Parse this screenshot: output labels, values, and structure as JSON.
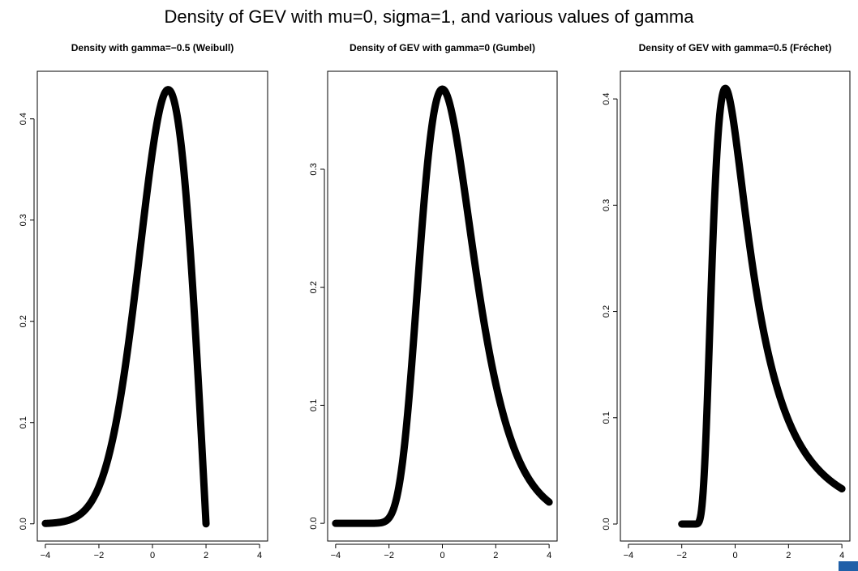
{
  "figure": {
    "title": "Density of GEV with mu=0, sigma=1, and various values of gamma"
  },
  "chart_data": [
    {
      "type": "line",
      "title": "Density with gamma=−0.5 (Weibull)",
      "xlabel": "",
      "ylabel": "",
      "gamma": -0.5,
      "xlim": [
        -4.3,
        4.3
      ],
      "ylim": [
        -0.017,
        0.447
      ],
      "x_ticks": [
        -4,
        -2,
        0,
        2,
        4
      ],
      "x_tick_labels": [
        "−4",
        "−2",
        "0",
        "2",
        "4"
      ],
      "y_ticks": [
        0.0,
        0.1,
        0.2,
        0.3,
        0.4
      ],
      "y_tick_labels": [
        "0.0",
        "0.1",
        "0.2",
        "0.3",
        "0.4"
      ],
      "x_range": [
        -4,
        2
      ],
      "series": [
        {
          "x": [
            -4.0,
            -3.0,
            -2.0,
            -1.0,
            0.0,
            0.5,
            0.6,
            1.0,
            1.5,
            2.0
          ],
          "y": [
            0.002,
            0.016,
            0.075,
            0.2,
            0.368,
            0.427,
            0.429,
            0.396,
            0.273,
            0.0
          ]
        }
      ],
      "grid": false
    },
    {
      "type": "line",
      "title": "Density of GEV with gamma=0 (Gumbel)",
      "xlabel": "",
      "ylabel": "",
      "gamma": 0,
      "xlim": [
        -4.3,
        4.3
      ],
      "ylim": [
        -0.015,
        0.383
      ],
      "x_ticks": [
        -4,
        -2,
        0,
        2,
        4
      ],
      "x_tick_labels": [
        "−4",
        "−2",
        "0",
        "2",
        "4"
      ],
      "y_ticks": [
        0.0,
        0.1,
        0.2,
        0.3
      ],
      "y_tick_labels": [
        "0.0",
        "0.1",
        "0.2",
        "0.3"
      ],
      "x_range": [
        -4,
        4
      ],
      "series": [
        {
          "x": [
            -4.0,
            -2.0,
            -1.5,
            -1.0,
            0.0,
            1.0,
            2.0,
            3.0,
            4.0
          ],
          "y": [
            0.0,
            0.005,
            0.033,
            0.179,
            0.368,
            0.255,
            0.118,
            0.047,
            0.018
          ]
        }
      ],
      "grid": false
    },
    {
      "type": "line",
      "title": "Density of GEV with gamma=0.5 (Fréchet)",
      "xlabel": "",
      "ylabel": "",
      "gamma": 0.5,
      "xlim": [
        -4.3,
        4.3
      ],
      "ylim": [
        -0.016,
        0.426
      ],
      "x_ticks": [
        -4,
        -2,
        0,
        2,
        4
      ],
      "x_tick_labels": [
        "−4",
        "−2",
        "0",
        "2",
        "4"
      ],
      "y_ticks": [
        0.0,
        0.1,
        0.2,
        0.3,
        0.4
      ],
      "y_tick_labels": [
        "0.0",
        "0.1",
        "0.2",
        "0.3",
        "0.4"
      ],
      "x_range": [
        -2,
        4
      ],
      "series": [
        {
          "x": [
            -2.0,
            -1.5,
            -1.0,
            -0.4,
            0.0,
            1.0,
            2.0,
            3.0,
            4.0
          ],
          "y": [
            0.0,
            0.0,
            0.12,
            0.41,
            0.368,
            0.184,
            0.092,
            0.052,
            0.033
          ]
        }
      ],
      "grid": false
    }
  ]
}
